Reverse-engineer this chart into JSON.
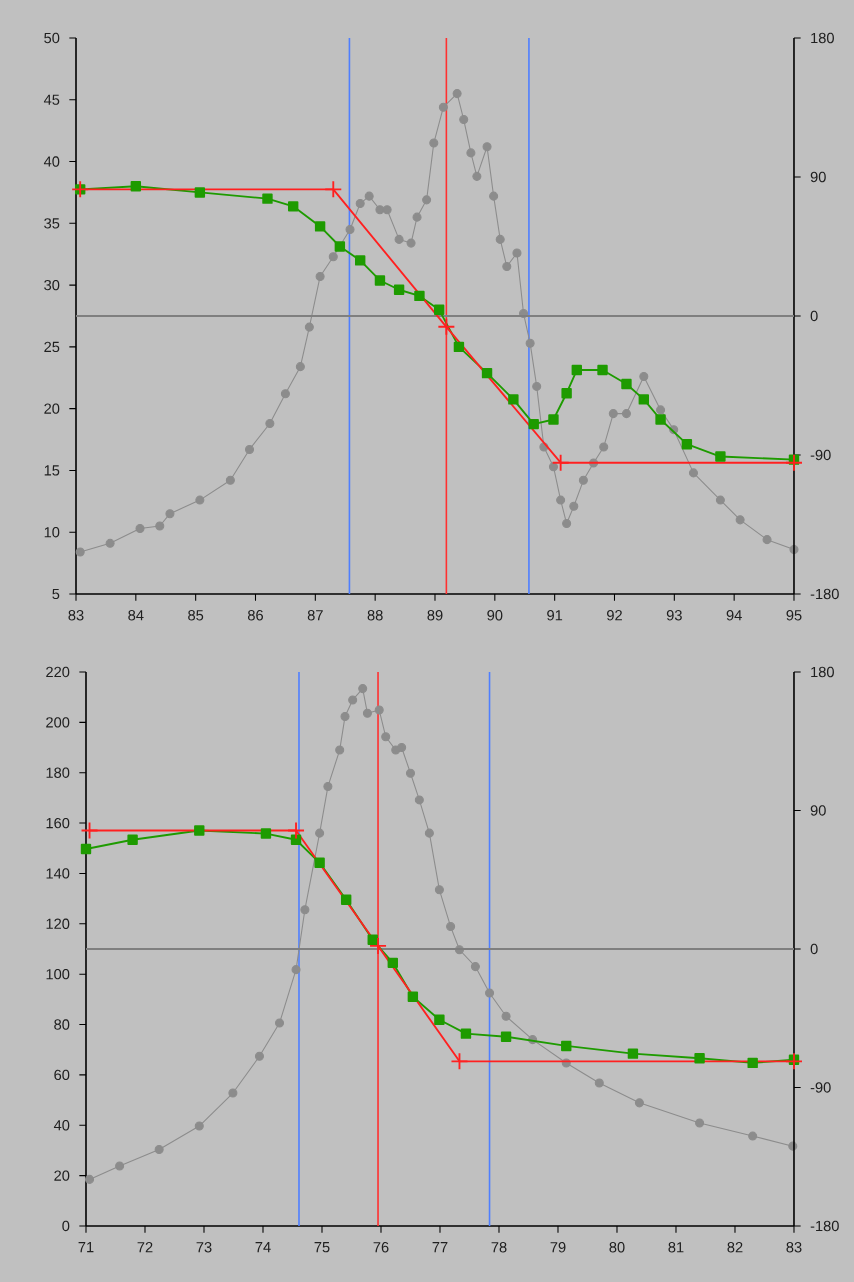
{
  "chart_data": [
    {
      "type": "line",
      "xlim": [
        83,
        95
      ],
      "xticks": [
        83,
        84,
        85,
        86,
        87,
        88,
        89,
        90,
        91,
        92,
        93,
        94,
        95
      ],
      "ylim": [
        5,
        50
      ],
      "yticks": [
        5,
        10,
        15,
        20,
        25,
        30,
        35,
        40,
        45,
        50
      ],
      "y2lim": [
        -180,
        180
      ],
      "y2ticks": [
        -180,
        -90,
        0,
        90,
        180
      ],
      "series": [
        {
          "color": "#8c8c8c",
          "marker": "circle",
          "x": [
            83.07,
            83.57,
            84.07,
            84.4,
            84.57,
            85.07,
            85.58,
            85.9,
            86.24,
            86.5,
            86.75,
            86.9,
            87.08,
            87.3,
            87.58,
            87.75,
            87.9,
            88.08,
            88.2,
            88.4,
            88.6,
            88.7,
            88.86,
            88.98,
            89.14,
            89.37,
            89.48,
            89.6,
            89.7,
            89.87,
            89.98,
            90.09,
            90.2,
            90.37,
            90.48,
            90.59,
            90.7,
            90.82,
            90.98,
            91.1,
            91.2,
            91.32,
            91.48,
            91.65,
            91.82,
            91.98,
            92.2,
            92.49,
            92.77,
            92.99,
            93.32,
            93.77,
            94.1,
            94.55,
            95.0
          ],
          "values": [
            8.4,
            9.1,
            10.3,
            10.5,
            11.5,
            12.6,
            14.2,
            16.7,
            18.8,
            21.2,
            23.4,
            26.6,
            30.7,
            32.3,
            34.5,
            36.6,
            37.2,
            36.1,
            36.1,
            33.7,
            33.4,
            35.5,
            36.9,
            41.5,
            44.4,
            45.5,
            43.4,
            40.7,
            38.8,
            41.2,
            37.2,
            33.7,
            31.5,
            32.6,
            27.7,
            25.3,
            21.8,
            16.9,
            15.3,
            12.6,
            10.7,
            12.1,
            14.2,
            15.6,
            16.9,
            19.6,
            19.6,
            22.6,
            19.9,
            18.3,
            14.8,
            12.6,
            11.0,
            9.4,
            8.6
          ]
        },
        {
          "color": "#1e9b00",
          "marker": "square",
          "axis": "y2",
          "x": [
            83.07,
            84.0,
            85.07,
            86.2,
            86.63,
            87.08,
            87.41,
            87.75,
            88.08,
            88.4,
            88.74,
            89.07,
            89.4,
            89.87,
            90.31,
            90.65,
            90.98,
            91.2,
            91.37,
            91.8,
            92.2,
            92.49,
            92.77,
            93.21,
            93.77,
            95.0
          ],
          "values": [
            82,
            84,
            80,
            76,
            71,
            58,
            45,
            36,
            23,
            17,
            13,
            4,
            -20,
            -37,
            -54,
            -70,
            -67,
            -50,
            -35,
            -35,
            -44,
            -54,
            -67,
            -83,
            -91,
            -93
          ]
        },
        {
          "color": "#ff2020",
          "marker": "cross",
          "axis": "y2",
          "x": [
            83.07,
            87.3,
            89.19,
            91.1,
            95
          ],
          "values": [
            82,
            82,
            -7,
            -95,
            -95
          ]
        }
      ],
      "ref_lines": [
        {
          "axis": "x",
          "value": 87.57,
          "color": "#4f7fff"
        },
        {
          "axis": "x",
          "value": 89.19,
          "color": "#ff3030"
        },
        {
          "axis": "x",
          "value": 90.57,
          "color": "#4f7fff"
        },
        {
          "axis": "y2",
          "value": 0,
          "color": "#7f7f7f"
        }
      ]
    },
    {
      "type": "line",
      "xlim": [
        71,
        83
      ],
      "xticks": [
        71,
        72,
        73,
        74,
        75,
        76,
        77,
        78,
        79,
        80,
        81,
        82,
        83
      ],
      "ylim": [
        0,
        220
      ],
      "yticks": [
        0,
        20,
        40,
        60,
        80,
        100,
        120,
        140,
        160,
        180,
        200,
        220
      ],
      "y2lim": [
        -180,
        180
      ],
      "y2ticks": [
        -180,
        -90,
        0,
        90,
        180
      ],
      "series": [
        {
          "color": "#8c8c8c",
          "marker": "circle",
          "x": [
            71.06,
            71.57,
            72.24,
            72.92,
            73.49,
            73.94,
            74.28,
            74.56,
            74.71,
            74.96,
            75.1,
            75.3,
            75.39,
            75.52,
            75.69,
            75.77,
            75.97,
            76.08,
            76.25,
            76.35,
            76.5,
            76.65,
            76.82,
            76.99,
            77.18,
            77.33,
            77.6,
            77.84,
            78.12,
            78.57,
            79.14,
            79.7,
            80.38,
            81.4,
            82.3,
            82.98
          ],
          "values": [
            18.5,
            23.8,
            30.4,
            39.7,
            52.8,
            67.4,
            80.6,
            101.8,
            125.6,
            156,
            174.5,
            189,
            202.3,
            208.9,
            213.4,
            203.6,
            204.9,
            194.3,
            189,
            190,
            179.8,
            169.2,
            156,
            133.5,
            118.9,
            109.7,
            103,
            92.5,
            83.3,
            74,
            64.7,
            56.8,
            48.9,
            40.9,
            35.7,
            31.7
          ]
        },
        {
          "color": "#1e9b00",
          "marker": "square",
          "axis": "y2",
          "x": [
            71.0,
            71.79,
            72.92,
            74.05,
            74.56,
            74.96,
            75.41,
            75.86,
            76.2,
            76.54,
            76.99,
            77.44,
            78.12,
            79.14,
            80.27,
            81.4,
            82.3,
            83.0
          ],
          "values": [
            65,
            71,
            77,
            75,
            71,
            56,
            32,
            6,
            -9,
            -31,
            -46,
            -55,
            -57,
            -63,
            -68,
            -71,
            -74,
            -72
          ]
        },
        {
          "color": "#ff2020",
          "marker": "cross",
          "axis": "y2",
          "x": [
            71.06,
            74.56,
            75.95,
            77.33,
            83
          ],
          "values": [
            77,
            77,
            2,
            -73,
            -73
          ]
        }
      ],
      "ref_lines": [
        {
          "axis": "x",
          "value": 74.61,
          "color": "#4f7fff"
        },
        {
          "axis": "x",
          "value": 75.95,
          "color": "#ff3030"
        },
        {
          "axis": "x",
          "value": 77.84,
          "color": "#4f7fff"
        },
        {
          "axis": "y2",
          "value": 0,
          "color": "#7f7f7f"
        }
      ]
    }
  ]
}
